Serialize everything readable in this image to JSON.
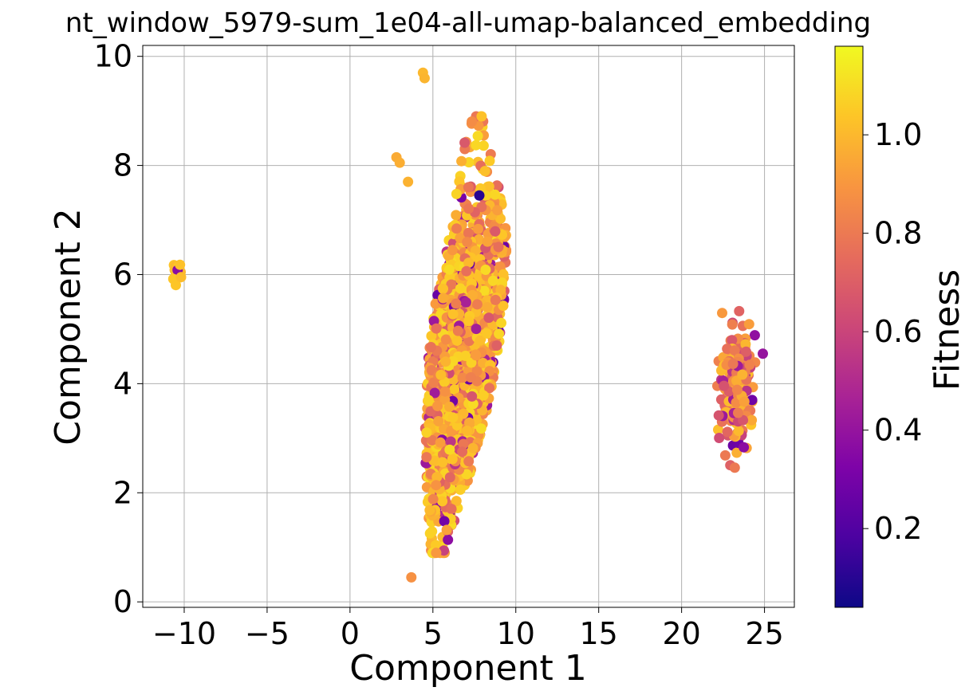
{
  "chart_data": {
    "type": "scatter",
    "title": "nt_window_5979-sum_1e04-all-umap-balanced_embedding",
    "xlabel": "Component 1",
    "ylabel": "Component 2",
    "xlim": [
      -12.5,
      26.8
    ],
    "ylim": [
      -0.1,
      10.2
    ],
    "xticks": [
      -10,
      -5,
      0,
      5,
      10,
      15,
      20,
      25
    ],
    "xtick_labels": [
      "−10",
      "−5",
      "0",
      "5",
      "10",
      "15",
      "20",
      "25"
    ],
    "yticks": [
      0,
      2,
      4,
      6,
      8,
      10
    ],
    "ytick_labels": [
      "0",
      "2",
      "4",
      "6",
      "8",
      "10"
    ],
    "grid": true,
    "colormap": "plasma",
    "colorbar": {
      "label": "Fitness",
      "range": [
        0.04,
        1.18
      ],
      "ticks": [
        0.2,
        0.4,
        0.6,
        0.8,
        1.0
      ],
      "tick_labels": [
        "0.2",
        "0.4",
        "0.6",
        "0.8",
        "1.0"
      ]
    },
    "clusters": [
      {
        "center": [
          -10.4,
          6.05
        ],
        "spread": [
          0.2,
          0.12
        ],
        "count": 14,
        "fitness": [
          0.97,
          1.05
        ]
      },
      {
        "center": [
          6.5,
          4.6
        ],
        "spread": [
          1.3,
          1.9
        ],
        "count": 1400,
        "fitness": [
          0.55,
          1.1
        ]
      },
      {
        "center": [
          23.3,
          3.9
        ],
        "spread": [
          0.55,
          0.75
        ],
        "count": 220,
        "fitness": [
          0.35,
          1.05
        ]
      }
    ],
    "points": [
      {
        "x": 3.7,
        "y": 0.45,
        "fitness": 0.88
      },
      {
        "x": 4.4,
        "y": 9.7,
        "fitness": 1.0
      },
      {
        "x": 4.5,
        "y": 9.6,
        "fitness": 0.99
      },
      {
        "x": 2.8,
        "y": 8.15,
        "fitness": 0.96
      },
      {
        "x": 3.0,
        "y": 8.05,
        "fitness": 0.97
      },
      {
        "x": 3.5,
        "y": 7.7,
        "fitness": 0.98
      },
      {
        "x": 7.8,
        "y": 7.45,
        "fitness": 0.1
      },
      {
        "x": 24.9,
        "y": 4.55,
        "fitness": 0.4
      }
    ]
  }
}
